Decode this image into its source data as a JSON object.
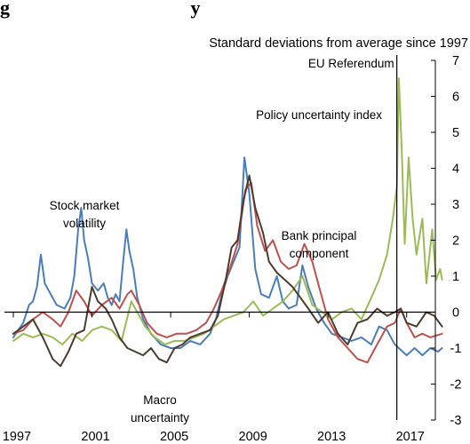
{
  "chart_data": {
    "type": "line",
    "title_fragment": "g                                     y",
    "subtitle": "Standard deviations from average since 1997",
    "ylim": [
      -3,
      7
    ],
    "xlim": [
      1997,
      2019
    ],
    "x_ticks": [
      "1997",
      "2001",
      "2005",
      "2009",
      "2013",
      "2017"
    ],
    "x_tick_values": [
      1997,
      2001,
      2005,
      2009,
      2013,
      2017
    ],
    "y_ticks": [
      "7",
      "6",
      "5",
      "4",
      "3",
      "2",
      "1",
      "0",
      "-1",
      "-2",
      "-3"
    ],
    "y_tick_values": [
      7,
      6,
      5,
      4,
      3,
      2,
      1,
      0,
      -1,
      -2,
      -3
    ],
    "event_line": {
      "x": 2016.5,
      "label": "EU Referendum"
    },
    "annotations": [
      {
        "key": "stock",
        "lines": [
          "Stock market",
          "volatility"
        ]
      },
      {
        "key": "macro",
        "lines": [
          "Macro",
          "uncertainty"
        ]
      },
      {
        "key": "bank",
        "lines": [
          "Bank principal",
          "component"
        ]
      },
      {
        "key": "policy",
        "lines": [
          "Policy uncertainty index"
        ]
      }
    ],
    "series": [
      {
        "key": "stock",
        "color": "#4a7ebb",
        "points": [
          [
            1997.0,
            -0.7
          ],
          [
            1997.5,
            -0.3
          ],
          [
            1997.8,
            0.2
          ],
          [
            1998.0,
            0.3
          ],
          [
            1998.2,
            0.7
          ],
          [
            1998.4,
            1.6
          ],
          [
            1998.6,
            0.8
          ],
          [
            1998.8,
            0.6
          ],
          [
            1999.2,
            0.2
          ],
          [
            1999.6,
            0.1
          ],
          [
            1999.9,
            0.4
          ],
          [
            2000.1,
            1.0
          ],
          [
            2000.3,
            2.3
          ],
          [
            2000.45,
            2.9
          ],
          [
            2000.6,
            2.0
          ],
          [
            2000.8,
            1.5
          ],
          [
            2001.0,
            0.8
          ],
          [
            2001.3,
            0.6
          ],
          [
            2001.6,
            0.8
          ],
          [
            2001.8,
            0.4
          ],
          [
            2002.0,
            0.2
          ],
          [
            2002.2,
            0.5
          ],
          [
            2002.4,
            0.3
          ],
          [
            2002.6,
            1.5
          ],
          [
            2002.75,
            2.3
          ],
          [
            2002.9,
            1.7
          ],
          [
            2003.1,
            1.2
          ],
          [
            2003.3,
            0.4
          ],
          [
            2003.6,
            -0.2
          ],
          [
            2004.0,
            -0.6
          ],
          [
            2004.5,
            -0.9
          ],
          [
            2005.0,
            -1.0
          ],
          [
            2005.5,
            -1.0
          ],
          [
            2006.0,
            -0.8
          ],
          [
            2006.5,
            -0.9
          ],
          [
            2007.0,
            -0.6
          ],
          [
            2007.3,
            -0.2
          ],
          [
            2007.6,
            0.5
          ],
          [
            2007.9,
            1.0
          ],
          [
            2008.2,
            1.4
          ],
          [
            2008.5,
            1.8
          ],
          [
            2008.75,
            4.3
          ],
          [
            2009.0,
            3.3
          ],
          [
            2009.3,
            1.2
          ],
          [
            2009.6,
            0.5
          ],
          [
            2010.0,
            0.4
          ],
          [
            2010.4,
            1.0
          ],
          [
            2010.7,
            0.3
          ],
          [
            2011.0,
            0.1
          ],
          [
            2011.4,
            0.2
          ],
          [
            2011.7,
            1.3
          ],
          [
            2012.0,
            0.7
          ],
          [
            2012.4,
            0.1
          ],
          [
            2012.8,
            -0.3
          ],
          [
            2013.2,
            -0.6
          ],
          [
            2013.7,
            -0.7
          ],
          [
            2014.2,
            -0.8
          ],
          [
            2014.7,
            -0.7
          ],
          [
            2015.2,
            -0.9
          ],
          [
            2015.6,
            -0.4
          ],
          [
            2016.0,
            -0.5
          ],
          [
            2016.4,
            -0.9
          ],
          [
            2016.6,
            -1.0
          ],
          [
            2017.0,
            -1.2
          ],
          [
            2017.4,
            -1.0
          ],
          [
            2017.8,
            -1.2
          ],
          [
            2018.2,
            -1.0
          ],
          [
            2018.6,
            -1.1
          ],
          [
            2018.8,
            -1.0
          ]
        ]
      },
      {
        "key": "bank",
        "color": "#c0504d",
        "points": [
          [
            1997.0,
            -0.6
          ],
          [
            1997.5,
            -0.5
          ],
          [
            1998.0,
            -0.2
          ],
          [
            1998.5,
            0.0
          ],
          [
            1999.0,
            -0.2
          ],
          [
            1999.4,
            -0.4
          ],
          [
            1999.8,
            0.0
          ],
          [
            2000.2,
            0.6
          ],
          [
            2000.6,
            0.3
          ],
          [
            2001.0,
            -0.1
          ],
          [
            2001.5,
            0.2
          ],
          [
            2002.0,
            0.4
          ],
          [
            2002.4,
            0.1
          ],
          [
            2002.8,
            0.5
          ],
          [
            2003.0,
            0.6
          ],
          [
            2003.4,
            0.2
          ],
          [
            2003.8,
            -0.3
          ],
          [
            2004.3,
            -0.6
          ],
          [
            2004.8,
            -0.7
          ],
          [
            2005.3,
            -0.6
          ],
          [
            2005.8,
            -0.6
          ],
          [
            2006.3,
            -0.5
          ],
          [
            2006.8,
            -0.3
          ],
          [
            2007.2,
            0.1
          ],
          [
            2007.6,
            0.6
          ],
          [
            2008.0,
            1.2
          ],
          [
            2008.4,
            1.9
          ],
          [
            2008.8,
            3.4
          ],
          [
            2009.1,
            3.6
          ],
          [
            2009.4,
            2.4
          ],
          [
            2009.8,
            1.7
          ],
          [
            2010.2,
            2.0
          ],
          [
            2010.6,
            1.4
          ],
          [
            2011.0,
            1.2
          ],
          [
            2011.4,
            1.3
          ],
          [
            2011.8,
            1.9
          ],
          [
            2012.2,
            1.4
          ],
          [
            2012.6,
            0.6
          ],
          [
            2013.0,
            -0.2
          ],
          [
            2013.5,
            -0.7
          ],
          [
            2014.0,
            -1.0
          ],
          [
            2014.5,
            -1.3
          ],
          [
            2015.0,
            -1.4
          ],
          [
            2015.5,
            -0.9
          ],
          [
            2016.0,
            -0.4
          ],
          [
            2016.4,
            -0.3
          ],
          [
            2016.7,
            0.1
          ],
          [
            2017.0,
            -0.3
          ],
          [
            2017.4,
            -0.7
          ],
          [
            2017.8,
            -0.6
          ],
          [
            2018.2,
            -0.7
          ],
          [
            2018.8,
            -0.6
          ]
        ]
      },
      {
        "key": "policy",
        "color": "#9bbb59",
        "points": [
          [
            1997.0,
            -0.8
          ],
          [
            1997.5,
            -0.6
          ],
          [
            1998.0,
            -0.7
          ],
          [
            1998.5,
            -0.6
          ],
          [
            1999.0,
            -0.7
          ],
          [
            1999.5,
            -0.9
          ],
          [
            2000.0,
            -0.6
          ],
          [
            2000.5,
            -0.8
          ],
          [
            2001.0,
            -0.5
          ],
          [
            2001.5,
            -0.4
          ],
          [
            2002.0,
            -0.5
          ],
          [
            2002.5,
            -0.8
          ],
          [
            2003.0,
            0.3
          ],
          [
            2003.3,
            0.0
          ],
          [
            2003.7,
            -0.4
          ],
          [
            2004.2,
            -0.7
          ],
          [
            2004.7,
            -0.9
          ],
          [
            2005.2,
            -0.8
          ],
          [
            2005.7,
            -0.8
          ],
          [
            2006.2,
            -0.7
          ],
          [
            2006.7,
            -0.6
          ],
          [
            2007.2,
            -0.4
          ],
          [
            2007.7,
            -0.2
          ],
          [
            2008.2,
            -0.1
          ],
          [
            2008.7,
            0.0
          ],
          [
            2009.2,
            0.3
          ],
          [
            2009.7,
            -0.1
          ],
          [
            2010.2,
            0.1
          ],
          [
            2010.7,
            0.3
          ],
          [
            2011.2,
            0.6
          ],
          [
            2011.7,
            1.0
          ],
          [
            2012.2,
            0.2
          ],
          [
            2012.7,
            0.0
          ],
          [
            2013.2,
            -0.2
          ],
          [
            2013.7,
            0.0
          ],
          [
            2014.2,
            0.1
          ],
          [
            2014.7,
            -0.2
          ],
          [
            2015.2,
            0.4
          ],
          [
            2015.6,
            0.9
          ],
          [
            2016.0,
            1.6
          ],
          [
            2016.3,
            2.6
          ],
          [
            2016.5,
            3.5
          ],
          [
            2016.6,
            6.5
          ],
          [
            2016.75,
            4.5
          ],
          [
            2016.9,
            1.9
          ],
          [
            2017.1,
            4.3
          ],
          [
            2017.3,
            2.6
          ],
          [
            2017.5,
            1.6
          ],
          [
            2017.8,
            2.6
          ],
          [
            2018.0,
            0.8
          ],
          [
            2018.3,
            2.3
          ],
          [
            2018.5,
            0.9
          ],
          [
            2018.7,
            1.2
          ],
          [
            2018.8,
            0.9
          ]
        ]
      },
      {
        "key": "macro",
        "color": "#4e3b30",
        "points": [
          [
            1997.0,
            -0.6
          ],
          [
            1997.5,
            -0.4
          ],
          [
            1998.0,
            -0.2
          ],
          [
            1998.5,
            -0.7
          ],
          [
            1999.0,
            -1.3
          ],
          [
            1999.4,
            -1.5
          ],
          [
            1999.8,
            -1.1
          ],
          [
            2000.2,
            -0.6
          ],
          [
            2000.6,
            -0.5
          ],
          [
            2001.0,
            0.7
          ],
          [
            2001.3,
            0.3
          ],
          [
            2001.7,
            0.1
          ],
          [
            2002.0,
            -0.2
          ],
          [
            2002.4,
            -0.7
          ],
          [
            2002.8,
            -1.0
          ],
          [
            2003.2,
            -1.1
          ],
          [
            2003.6,
            -1.2
          ],
          [
            2004.0,
            -1.0
          ],
          [
            2004.4,
            -1.3
          ],
          [
            2004.8,
            -1.4
          ],
          [
            2005.2,
            -1.0
          ],
          [
            2005.6,
            -0.9
          ],
          [
            2006.0,
            -0.7
          ],
          [
            2006.5,
            -0.6
          ],
          [
            2007.0,
            -0.5
          ],
          [
            2007.4,
            -0.1
          ],
          [
            2007.8,
            0.9
          ],
          [
            2008.1,
            1.8
          ],
          [
            2008.4,
            2.0
          ],
          [
            2008.7,
            3.1
          ],
          [
            2009.0,
            3.8
          ],
          [
            2009.3,
            2.9
          ],
          [
            2009.7,
            2.2
          ],
          [
            2010.0,
            1.4
          ],
          [
            2010.4,
            1.1
          ],
          [
            2010.8,
            0.9
          ],
          [
            2011.2,
            0.7
          ],
          [
            2011.6,
            0.4
          ],
          [
            2012.0,
            0.1
          ],
          [
            2012.5,
            -0.3
          ],
          [
            2013.0,
            0.0
          ],
          [
            2013.5,
            -0.6
          ],
          [
            2014.0,
            -0.9
          ],
          [
            2014.5,
            -0.3
          ],
          [
            2015.0,
            -0.2
          ],
          [
            2015.5,
            0.1
          ],
          [
            2016.0,
            -0.1
          ],
          [
            2016.4,
            0.0
          ],
          [
            2016.7,
            0.1
          ],
          [
            2017.0,
            -0.3
          ],
          [
            2017.5,
            -0.4
          ],
          [
            2018.0,
            0.0
          ],
          [
            2018.4,
            -0.1
          ],
          [
            2018.8,
            -0.4
          ]
        ]
      }
    ],
    "grid": false,
    "legend": "none"
  }
}
